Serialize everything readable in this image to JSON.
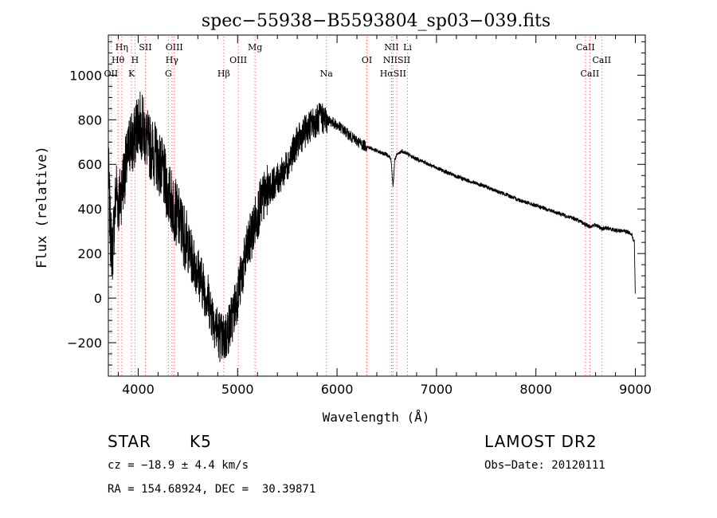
{
  "chart_data": {
    "type": "line",
    "title": "spec−55938−B5593804_sp03−039.fits",
    "xlabel": "Wavelength (Å)",
    "ylabel": "Flux (relative)",
    "xlim": [
      3700,
      9100
    ],
    "ylim": [
      -350,
      1180
    ],
    "x_ticks": [
      4000,
      5000,
      6000,
      7000,
      8000,
      9000
    ],
    "x_tick_labels": [
      "4000",
      "5000",
      "6000",
      "7000",
      "8000",
      "9000"
    ],
    "y_ticks": [
      -200,
      0,
      200,
      400,
      600,
      800,
      1000
    ],
    "y_tick_labels": [
      "−200",
      "0",
      "200",
      "400",
      "600",
      "800",
      "1000"
    ],
    "grid": false,
    "series": [
      {
        "name": "flux",
        "color": "#000000",
        "x": [
          3700,
          3720,
          3740,
          3760,
          3780,
          3800,
          3830,
          3860,
          3890,
          3920,
          3950,
          3980,
          4000,
          4020,
          4050,
          4080,
          4100,
          4150,
          4200,
          4250,
          4300,
          4350,
          4400,
          4450,
          4500,
          4550,
          4600,
          4650,
          4700,
          4750,
          4800,
          4850,
          4880,
          4900,
          4950,
          5000,
          5050,
          5100,
          5150,
          5200,
          5250,
          5300,
          5350,
          5400,
          5450,
          5500,
          5550,
          5600,
          5650,
          5700,
          5750,
          5800,
          5850,
          5900,
          5950,
          6000,
          6050,
          6100,
          6150,
          6200,
          6250,
          6300,
          6350,
          6400,
          6450,
          6500,
          6540,
          6563,
          6580,
          6600,
          6650,
          6700,
          6750,
          6800,
          6850,
          6900,
          7000,
          7100,
          7200,
          7300,
          7400,
          7500,
          7600,
          7700,
          7800,
          7900,
          8000,
          8100,
          8200,
          8300,
          8400,
          8498,
          8542,
          8600,
          8662,
          8700,
          8800,
          8900,
          8960,
          8990,
          9000
        ],
        "values": [
          600,
          300,
          200,
          350,
          500,
          420,
          480,
          560,
          610,
          720,
          680,
          760,
          800,
          780,
          760,
          720,
          690,
          660,
          620,
          560,
          470,
          420,
          360,
          300,
          230,
          170,
          120,
          60,
          0,
          -80,
          -150,
          -190,
          -170,
          -150,
          -80,
          20,
          120,
          220,
          300,
          380,
          440,
          480,
          510,
          530,
          560,
          600,
          650,
          700,
          730,
          760,
          780,
          800,
          810,
          800,
          790,
          775,
          760,
          740,
          720,
          705,
          690,
          680,
          670,
          660,
          650,
          645,
          630,
          500,
          620,
          640,
          660,
          650,
          635,
          625,
          615,
          605,
          585,
          565,
          545,
          530,
          515,
          500,
          480,
          465,
          445,
          430,
          415,
          400,
          385,
          370,
          355,
          330,
          320,
          330,
          310,
          315,
          305,
          300,
          290,
          250,
          0
        ]
      }
    ],
    "spectral_lines": [
      {
        "label": "Hη",
        "wavelength": 3835,
        "row": 0,
        "color": "#ff5050"
      },
      {
        "label": "Hθ",
        "wavelength": 3797,
        "row": 1,
        "color": "#ff5050"
      },
      {
        "label": "OII",
        "wavelength": 3727,
        "row": 2,
        "color": "#ff5050"
      },
      {
        "label": "SII",
        "wavelength": 4072,
        "row": 0,
        "color": "#ff5050"
      },
      {
        "label": "H",
        "wavelength": 3968,
        "row": 1,
        "color": "#ff5050"
      },
      {
        "label": "K",
        "wavelength": 3933,
        "row": 2,
        "color": "#ff5050"
      },
      {
        "label": "OIII",
        "wavelength": 4363,
        "row": 0,
        "color": "#ff5050"
      },
      {
        "label": "Hγ",
        "wavelength": 4340,
        "row": 1,
        "color": "#ff5050"
      },
      {
        "label": "G",
        "wavelength": 4304,
        "row": 2,
        "color": "#ff5050"
      },
      {
        "label": "Hβ",
        "wavelength": 4861,
        "row": 2,
        "color": "#ff5050"
      },
      {
        "label": "OIII",
        "wavelength": 5007,
        "row": 1,
        "color": "#ff5050"
      },
      {
        "label": "Mg",
        "wavelength": 5175,
        "row": 0,
        "color": "#ff5050"
      },
      {
        "label": "Na",
        "wavelength": 5893,
        "row": 2,
        "color": "#ff5050"
      },
      {
        "label": "OI",
        "wavelength": 6300,
        "row": 1,
        "color": "#ff5050"
      },
      {
        "label": "NII",
        "wavelength": 6548,
        "row": 0,
        "color": "#ff5050"
      },
      {
        "label": "Li",
        "wavelength": 6708,
        "row": 0,
        "color": "#ff5050"
      },
      {
        "label": "NIISII",
        "wavelength": 6600,
        "row": 1,
        "color": "#ff5050"
      },
      {
        "label": "HαSII",
        "wavelength": 6563,
        "row": 2,
        "color": "#ff5050"
      },
      {
        "label": "CaII",
        "wavelength": 8498,
        "row": 0,
        "color": "#ff5050"
      },
      {
        "label": "CaII",
        "wavelength": 8662,
        "row": 1,
        "color": "#ff5050"
      },
      {
        "label": "CaII",
        "wavelength": 8542,
        "row": 2,
        "color": "#ff5050"
      }
    ]
  },
  "info": {
    "object_class": "STAR",
    "subclass": "K5",
    "survey": "LAMOST DR2",
    "cz": "cz = −18.9 ± 4.4 km/s",
    "obs_date": "Obs−Date: 20120111",
    "coords": "RA = 154.68924, DEC =  30.39871"
  }
}
